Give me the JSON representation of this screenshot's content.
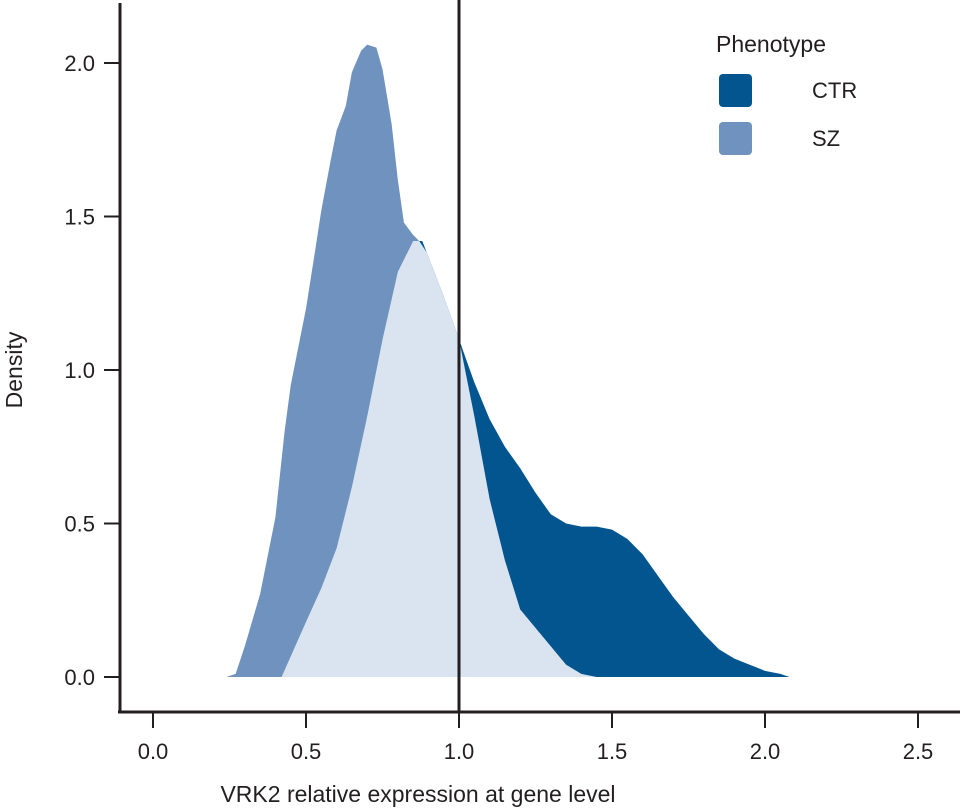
{
  "chart_data": {
    "type": "area",
    "subtype": "density",
    "title": "",
    "xlabel": "VRK2 relative expression at gene level",
    "ylabel": "Density",
    "xlim": [
      -0.12,
      2.65
    ],
    "ylim": [
      -0.1,
      2.2
    ],
    "x_ticks": [
      0.0,
      0.5,
      1.0,
      1.5,
      2.0,
      2.5
    ],
    "x_tick_labels": [
      "0.0",
      "0.5",
      "1.0",
      "1.5",
      "2.0",
      "2.5"
    ],
    "y_ticks": [
      0.0,
      0.5,
      1.0,
      1.5,
      2.0
    ],
    "y_tick_labels": [
      "0.0",
      "0.5",
      "1.0",
      "1.5",
      "2.0"
    ],
    "grid": false,
    "reference_line": {
      "orientation": "vertical",
      "x": 1.0,
      "color": "#231f20"
    },
    "overlap_color": "#dae3f0",
    "legend": {
      "title": "Phenotype",
      "position": "top-right",
      "entries": [
        {
          "label": "CTR",
          "color": "#02558f"
        },
        {
          "label": "SZ",
          "color": "#6f93be"
        }
      ]
    },
    "series": [
      {
        "name": "SZ",
        "color": "#6f93be",
        "x": [
          0.24,
          0.27,
          0.3,
          0.35,
          0.4,
          0.43,
          0.45,
          0.47,
          0.5,
          0.53,
          0.55,
          0.58,
          0.6,
          0.63,
          0.65,
          0.68,
          0.7,
          0.73,
          0.75,
          0.78,
          0.8,
          0.82,
          0.85,
          0.87
        ],
        "y": [
          0.0,
          0.01,
          0.1,
          0.27,
          0.52,
          0.8,
          0.95,
          1.05,
          1.2,
          1.39,
          1.52,
          1.68,
          1.78,
          1.86,
          1.97,
          2.04,
          2.06,
          2.05,
          1.98,
          1.8,
          1.62,
          1.48,
          1.44,
          1.42
        ]
      },
      {
        "name": "CTR",
        "color": "#02558f",
        "x": [
          0.42,
          0.5,
          0.55,
          0.6,
          0.65,
          0.7,
          0.75,
          0.8,
          0.85,
          0.88,
          0.95,
          1.0,
          1.05,
          1.1,
          1.15,
          1.2,
          1.25,
          1.3,
          1.35,
          1.4,
          1.45,
          1.5,
          1.55,
          1.6,
          1.65,
          1.7,
          1.75,
          1.8,
          1.85,
          1.9,
          1.95,
          2.0,
          2.05,
          2.08
        ],
        "y": [
          0.0,
          0.18,
          0.29,
          0.42,
          0.62,
          0.85,
          1.1,
          1.32,
          1.42,
          1.42,
          1.24,
          1.1,
          0.96,
          0.84,
          0.75,
          0.68,
          0.6,
          0.53,
          0.5,
          0.49,
          0.49,
          0.48,
          0.45,
          0.4,
          0.33,
          0.26,
          0.2,
          0.14,
          0.09,
          0.06,
          0.04,
          0.02,
          0.01,
          0.0
        ]
      }
    ]
  }
}
